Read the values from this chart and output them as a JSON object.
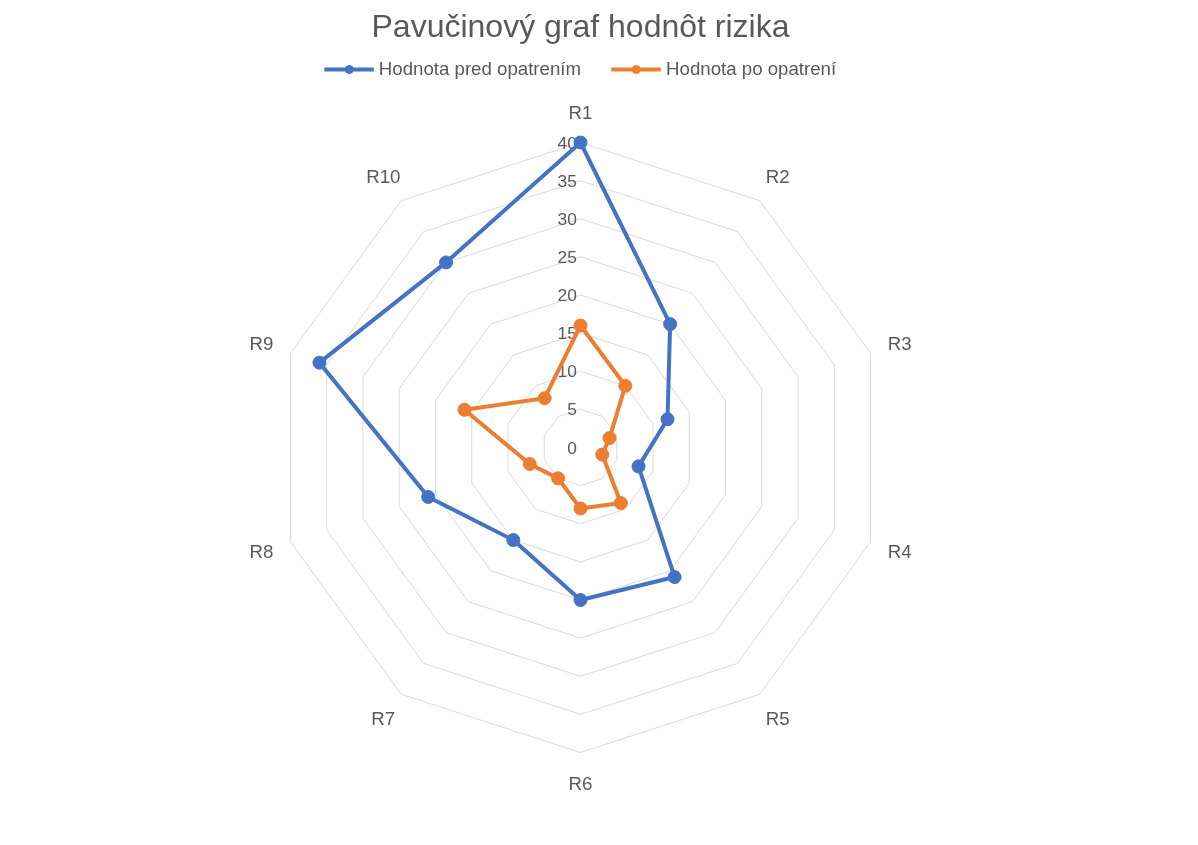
{
  "chart_data": {
    "type": "radar",
    "title": "Pavučinový graf hodnôt rizika",
    "categories": [
      "R1",
      "R2",
      "R3",
      "R4",
      "R5",
      "R6",
      "R7",
      "R8",
      "R9",
      "R10"
    ],
    "series": [
      {
        "name": "Hodnota pred opatrením",
        "color": "#4472c4",
        "values": [
          40,
          20,
          12,
          8,
          21,
          20,
          15,
          21,
          36,
          30
        ]
      },
      {
        "name": "Hodnota po opatrení",
        "color": "#ed7d31",
        "values": [
          16,
          10,
          4,
          3,
          9,
          8,
          5,
          7,
          16,
          8
        ]
      }
    ],
    "ylim": [
      0,
      40
    ],
    "yticks": [
      0,
      5,
      10,
      15,
      20,
      25,
      30,
      35,
      40
    ],
    "grid": true,
    "legend": "top",
    "marker": "circle",
    "line_style": "solid"
  }
}
